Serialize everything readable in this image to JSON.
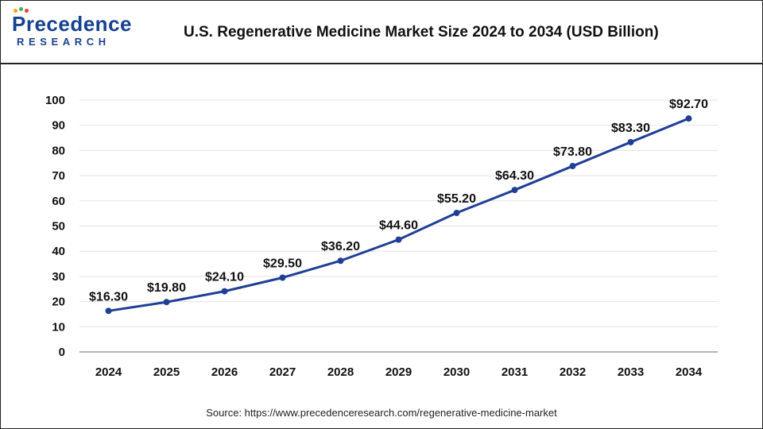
{
  "header": {
    "logo_word": "Precedence",
    "logo_sub": "RESEARCH",
    "title": "U.S. Regenerative Medicine Market Size 2024 to 2034 (USD Billion)"
  },
  "footer": {
    "source": "Source: https://www.precedenceresearch.com/regenerative-medicine-market"
  },
  "colors": {
    "line": "#1f3f95",
    "grid": "#e3e3e3",
    "axis": "#9a9a9a",
    "logo": "#17428f"
  },
  "chart_data": {
    "type": "line",
    "title": "U.S. Regenerative Medicine Market Size 2024 to 2034 (USD Billion)",
    "xlabel": "",
    "ylabel": "",
    "ylim": [
      0,
      100
    ],
    "yticks": [
      0,
      10,
      20,
      30,
      40,
      50,
      60,
      70,
      80,
      90,
      100
    ],
    "grid": true,
    "categories": [
      "2024",
      "2025",
      "2026",
      "2027",
      "2028",
      "2029",
      "2030",
      "2031",
      "2032",
      "2033",
      "2034"
    ],
    "series": [
      {
        "name": "U.S. Regenerative Medicine Market Size",
        "values": [
          16.3,
          19.8,
          24.1,
          29.5,
          36.2,
          44.6,
          55.2,
          64.3,
          73.8,
          83.3,
          92.7
        ],
        "labels": [
          "$16.30",
          "$19.80",
          "$24.10",
          "$29.50",
          "$36.20",
          "$44.60",
          "$55.20",
          "$64.30",
          "$73.80",
          "$83.30",
          "$92.70"
        ]
      }
    ]
  }
}
